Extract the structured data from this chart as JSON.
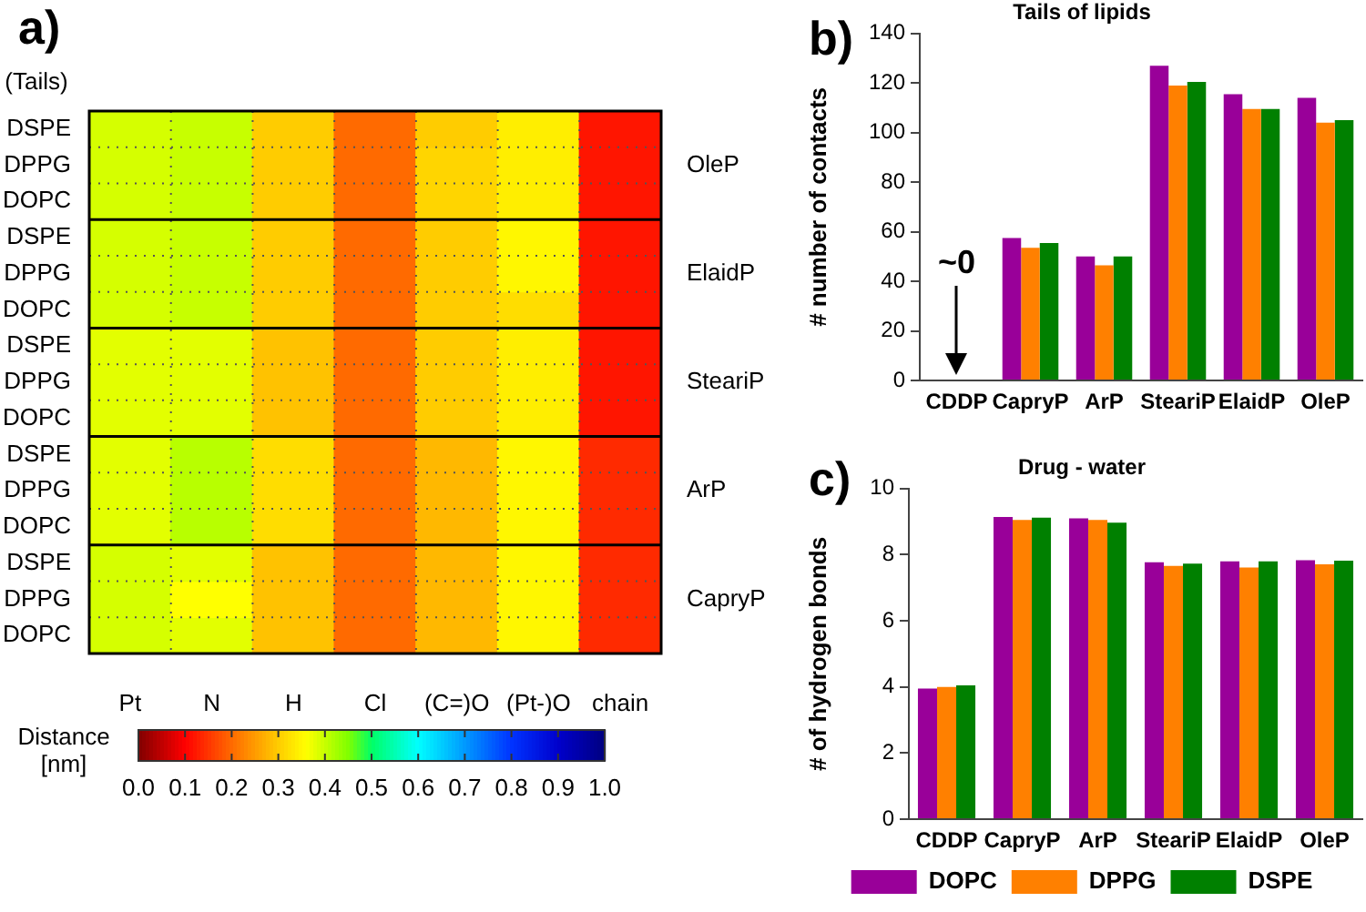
{
  "chart_data": [
    {
      "type": "heatmap",
      "annotations": [
        "a)"
      ],
      "ylabel": "(Tails)",
      "clabel": "Distance [nm]",
      "grid": true,
      "categories": [
        "Pt",
        "N",
        "H",
        "Cl",
        "(C=)O",
        "(Pt-)O",
        "chain"
      ],
      "y_categories": [
        "DSPE",
        "DPPG",
        "DOPC",
        "DSPE",
        "DPPG",
        "DOPC",
        "DSPE",
        "DPPG",
        "DOPC",
        "DSPE",
        "DPPG",
        "DOPC",
        "DSPE",
        "DPPG",
        "DOPC"
      ],
      "y2_categories": [
        null,
        "OleP",
        null,
        null,
        "ElaidP",
        null,
        null,
        "SteariP",
        null,
        null,
        "ArP",
        null,
        null,
        "CapryP",
        null
      ],
      "cells": [
        [
          0.39,
          0.4,
          0.3,
          0.2,
          0.3,
          0.34,
          0.12
        ],
        [
          0.39,
          0.4,
          0.3,
          0.2,
          0.31,
          0.34,
          0.12
        ],
        [
          0.39,
          0.4,
          0.3,
          0.2,
          0.31,
          0.34,
          0.12
        ],
        [
          0.39,
          0.4,
          0.3,
          0.2,
          0.3,
          0.35,
          0.12
        ],
        [
          0.39,
          0.4,
          0.3,
          0.2,
          0.3,
          0.35,
          0.12
        ],
        [
          0.39,
          0.4,
          0.3,
          0.2,
          0.3,
          0.32,
          0.12
        ],
        [
          0.38,
          0.38,
          0.29,
          0.2,
          0.3,
          0.34,
          0.12
        ],
        [
          0.38,
          0.38,
          0.29,
          0.2,
          0.3,
          0.34,
          0.12
        ],
        [
          0.38,
          0.38,
          0.29,
          0.2,
          0.3,
          0.34,
          0.12
        ],
        [
          0.38,
          0.41,
          0.32,
          0.2,
          0.28,
          0.35,
          0.14
        ],
        [
          0.38,
          0.41,
          0.32,
          0.2,
          0.28,
          0.35,
          0.14
        ],
        [
          0.38,
          0.41,
          0.32,
          0.2,
          0.28,
          0.35,
          0.14
        ],
        [
          0.39,
          0.38,
          0.29,
          0.2,
          0.28,
          0.35,
          0.14
        ],
        [
          0.39,
          0.36,
          0.29,
          0.2,
          0.28,
          0.35,
          0.14
        ],
        [
          0.39,
          0.38,
          0.29,
          0.2,
          0.28,
          0.35,
          0.14
        ]
      ],
      "clim": [
        0,
        1
      ],
      "cticks": [
        {
          "value": 0,
          "label": "0.0"
        },
        {
          "value": 0.1,
          "label": "0.1"
        },
        {
          "value": 0.2,
          "label": "0.2"
        },
        {
          "value": 0.3,
          "label": "0.3"
        },
        {
          "value": 0.4,
          "label": "0.4"
        },
        {
          "value": 0.5,
          "label": "0.5"
        },
        {
          "value": 0.6,
          "label": "0.6"
        },
        {
          "value": 0.7,
          "label": "0.7"
        },
        {
          "value": 0.8,
          "label": "0.8"
        },
        {
          "value": 0.9,
          "label": "0.9"
        },
        {
          "value": 1,
          "label": "1.0"
        }
      ]
    },
    {
      "type": "bar",
      "title": "Tails of lipids",
      "ylabel": "# number of contacts",
      "annotations": [
        "b)",
        "~0"
      ],
      "categories": [
        "CDDP",
        "CapryP",
        "ArP",
        "SteariP",
        "ElaidP",
        "OleP"
      ],
      "series": [
        {
          "color": "#990099",
          "values": [
            null,
            57.5,
            50,
            127,
            115.5,
            114
          ]
        },
        {
          "color": "#ff8000",
          "values": [
            null,
            53.5,
            46.5,
            119,
            109.5,
            104
          ]
        },
        {
          "color": "#008000",
          "values": [
            null,
            55.5,
            50,
            120.5,
            109.5,
            105
          ]
        }
      ],
      "ylim": [
        0,
        140
      ],
      "yticks": [
        0,
        20,
        40,
        60,
        80,
        100,
        120,
        140
      ],
      "grid": false
    },
    {
      "type": "bar",
      "title": "Drug - water",
      "ylabel": "# of hydrogen bonds",
      "annotations": [
        "c)"
      ],
      "categories": [
        "CDDP",
        "CapryP",
        "ArP",
        "SteariP",
        "ElaidP",
        "OleP"
      ],
      "series": [
        {
          "name": "DOPC",
          "color": "#990099",
          "values": [
            3.95,
            9.14,
            9.1,
            7.77,
            7.8,
            7.83
          ]
        },
        {
          "name": "DPPG",
          "color": "#ff8000",
          "values": [
            4.0,
            9.05,
            9.05,
            7.66,
            7.61,
            7.71
          ]
        },
        {
          "name": "DSPE",
          "color": "#008000",
          "values": [
            4.05,
            9.12,
            8.97,
            7.73,
            7.8,
            7.82
          ]
        }
      ],
      "ylim": [
        0,
        10
      ],
      "yticks": [
        0,
        2,
        4,
        6,
        8,
        10
      ],
      "grid": false,
      "legend": "bottom"
    }
  ]
}
